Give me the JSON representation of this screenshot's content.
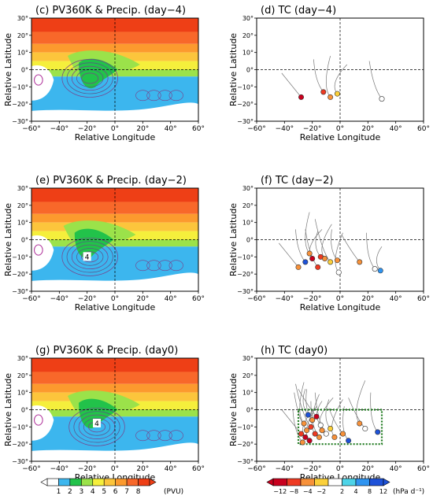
{
  "panels": [
    {
      "id": "c",
      "title": "(c) PV360K & Precip. (day−4)",
      "kind": "pv",
      "day": -4
    },
    {
      "id": "d",
      "title": "(d) TC (day−4)",
      "kind": "tc",
      "day": -4
    },
    {
      "id": "e",
      "title": "(e) PV360K & Precip. (day−2)",
      "kind": "pv",
      "day": -2
    },
    {
      "id": "f",
      "title": "(f) TC (day−2)",
      "kind": "tc",
      "day": -2
    },
    {
      "id": "g",
      "title": "(g) PV360K & Precip. (day0)",
      "kind": "pv",
      "day": 0
    },
    {
      "id": "h",
      "title": "(h) TC (day0)",
      "kind": "tc",
      "day": 0
    }
  ],
  "axes": {
    "xlabel": "Relative Longitude",
    "ylabel": "Relative Latitude",
    "xlim": [
      -60,
      60
    ],
    "ylim": [
      -30,
      30
    ],
    "xticks": [
      "−60°",
      "−40°",
      "−20°",
      "0°",
      "20°",
      "40°",
      "60°"
    ],
    "yticks": [
      "30°",
      "20°",
      "10°",
      "0°",
      "−10°",
      "−20°",
      "−30°"
    ],
    "ytick_values": [
      30,
      20,
      10,
      0,
      -10,
      -20,
      -30
    ],
    "xtick_values": [
      -60,
      -40,
      -20,
      0,
      20,
      40,
      60
    ]
  },
  "contour_labels": [
    {
      "panel": "e",
      "text": "4",
      "x": -20,
      "y": -10
    },
    {
      "panel": "g",
      "text": "4",
      "x": -13,
      "y": -8
    }
  ],
  "colorbars": {
    "pv": {
      "unit": "(PVU)",
      "labels": [
        "1",
        "2",
        "3",
        "4",
        "5",
        "6",
        "7",
        "8"
      ],
      "colors": [
        "#ffffff",
        "#3cb6ee",
        "#22c24a",
        "#9be24a",
        "#f5ef3c",
        "#fcc53c",
        "#fc9a2e",
        "#f8682a",
        "#ee3f16"
      ]
    },
    "tc": {
      "unit": "(hPa d⁻¹)",
      "labels": [
        "−12",
        "−8",
        "−4",
        "−2",
        "2",
        "4",
        "8",
        "12"
      ],
      "colors": [
        "#c8001e",
        "#ee3a22",
        "#f7913a",
        "#fbd03a",
        "#ffffff",
        "#4ed4e8",
        "#2f94f0",
        "#1e52d8"
      ]
    }
  },
  "chart_data": [
    {
      "type": "heatmap",
      "panel": "c",
      "title": "(c) PV360K & Precip. (day−4)",
      "xlabel": "Relative Longitude",
      "ylabel": "Relative Latitude",
      "xlim": [
        -60,
        60
      ],
      "ylim": [
        -30,
        30
      ],
      "pv_levels_pvu": [
        1,
        2,
        3,
        4,
        5,
        6,
        7,
        8
      ],
      "green_tongue_center": [
        -12,
        -4
      ],
      "precip_contours": "dense around the PV tongue near (−20, −5) and east of 0° along −15°"
    },
    {
      "type": "scatter",
      "panel": "d",
      "title": "(d) TC (day−4)",
      "xlabel": "Relative Longitude",
      "ylabel": "Relative Latitude",
      "xlim": [
        -60,
        60
      ],
      "ylim": [
        -30,
        30
      ],
      "points": [
        {
          "x": -28,
          "y": -16,
          "value": -10
        },
        {
          "x": -12,
          "y": -13,
          "value": -9
        },
        {
          "x": -7,
          "y": -16,
          "value": -3
        },
        {
          "x": -2,
          "y": -14,
          "value": -1
        },
        {
          "x": 30,
          "y": -17,
          "value": 0
        }
      ]
    },
    {
      "type": "heatmap",
      "panel": "e",
      "title": "(e) PV360K & Precip. (day−2)",
      "xlabel": "Relative Longitude",
      "ylabel": "Relative Latitude",
      "xlim": [
        -60,
        60
      ],
      "ylim": [
        -30,
        30
      ],
      "pv_levels_pvu": [
        1,
        2,
        3,
        4,
        5,
        6,
        7,
        8
      ],
      "green_tongue_center": [
        -15,
        -6
      ],
      "precip_contours": "dense around the PV tongue near (−20, −10)"
    },
    {
      "type": "scatter",
      "panel": "f",
      "title": "(f) TC (day−2)",
      "xlabel": "Relative Longitude",
      "ylabel": "Relative Latitude",
      "xlim": [
        -60,
        60
      ],
      "ylim": [
        -30,
        30
      ],
      "points": [
        {
          "x": -30,
          "y": -16,
          "value": -3
        },
        {
          "x": -25,
          "y": -13,
          "value": 10
        },
        {
          "x": -22,
          "y": -8,
          "value": -3
        },
        {
          "x": -20,
          "y": -11,
          "value": -10
        },
        {
          "x": -16,
          "y": -16,
          "value": -9
        },
        {
          "x": -14,
          "y": -10,
          "value": -9
        },
        {
          "x": -11,
          "y": -11,
          "value": -3
        },
        {
          "x": -7,
          "y": -13,
          "value": -1
        },
        {
          "x": -2,
          "y": -12,
          "value": -3
        },
        {
          "x": -1,
          "y": -19,
          "value": 0
        },
        {
          "x": 14,
          "y": -13,
          "value": -3
        },
        {
          "x": 25,
          "y": -17,
          "value": 0
        },
        {
          "x": 29,
          "y": -18,
          "value": 4
        }
      ]
    },
    {
      "type": "heatmap",
      "panel": "g",
      "title": "(g) PV360K & Precip. (day0)",
      "xlabel": "Relative Longitude",
      "ylabel": "Relative Latitude",
      "xlim": [
        -60,
        60
      ],
      "ylim": [
        -30,
        30
      ],
      "pv_levels_pvu": [
        1,
        2,
        3,
        4,
        5,
        6,
        7,
        8
      ],
      "green_tongue_center": [
        -12,
        -6
      ],
      "precip_contours": "dense around the origin of the composite near (−15, −10)"
    },
    {
      "type": "scatter",
      "panel": "h",
      "title": "(h) TC (day0)",
      "xlabel": "Relative Longitude",
      "ylabel": "Relative Latitude",
      "xlim": [
        -60,
        60
      ],
      "ylim": [
        -30,
        30
      ],
      "box": {
        "x": [
          -30,
          30
        ],
        "y": [
          -20,
          0
        ]
      },
      "points": [
        {
          "x": -28,
          "y": -14,
          "value": -9
        },
        {
          "x": -27,
          "y": -19,
          "value": -3
        },
        {
          "x": -26,
          "y": -8,
          "value": -3
        },
        {
          "x": -25,
          "y": -16,
          "value": -10
        },
        {
          "x": -24,
          "y": -12,
          "value": -3
        },
        {
          "x": -23,
          "y": -3,
          "value": 8
        },
        {
          "x": -22,
          "y": -18,
          "value": -10
        },
        {
          "x": -21,
          "y": -10,
          "value": -9
        },
        {
          "x": -20,
          "y": -6,
          "value": -3
        },
        {
          "x": -18,
          "y": -14,
          "value": -9
        },
        {
          "x": -17,
          "y": -4,
          "value": -10
        },
        {
          "x": -15,
          "y": -16,
          "value": -3
        },
        {
          "x": -14,
          "y": -9,
          "value": 0
        },
        {
          "x": -13,
          "y": -12,
          "value": -3
        },
        {
          "x": -10,
          "y": -14,
          "value": 0
        },
        {
          "x": -7,
          "y": -11,
          "value": -1
        },
        {
          "x": -4,
          "y": -16,
          "value": -3
        },
        {
          "x": 2,
          "y": -14,
          "value": -3
        },
        {
          "x": 6,
          "y": -18,
          "value": 10
        },
        {
          "x": 14,
          "y": -8,
          "value": -3
        },
        {
          "x": 18,
          "y": -11,
          "value": 0
        },
        {
          "x": 27,
          "y": -13,
          "value": 8
        }
      ]
    }
  ]
}
